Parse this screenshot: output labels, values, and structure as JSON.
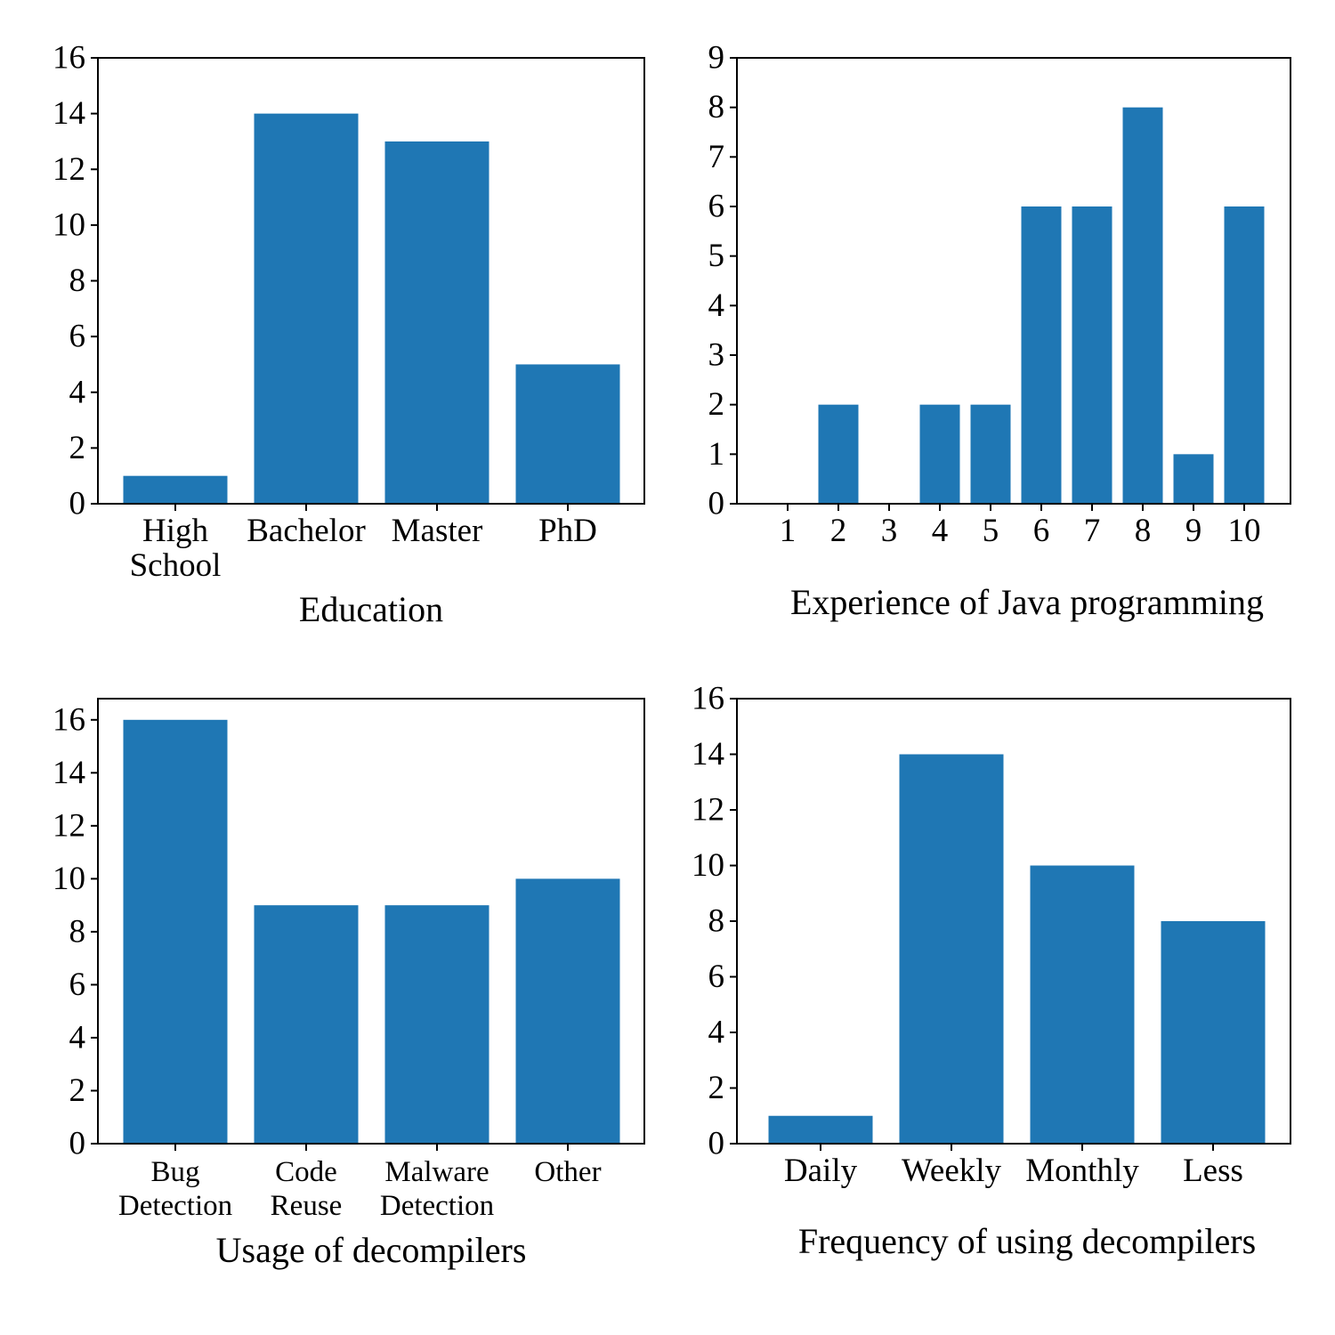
{
  "figure": {
    "bar_color": "#1f77b4",
    "axes_color": "#000000",
    "background": "#ffffff"
  },
  "chart_data": [
    {
      "type": "bar",
      "title": "",
      "xlabel": "Education",
      "ylabel": "",
      "categories": [
        [
          "High",
          "School"
        ],
        [
          "Bachelor"
        ],
        [
          "Master"
        ],
        [
          "PhD"
        ]
      ],
      "values": [
        1,
        14,
        13,
        5
      ],
      "ylim": [
        0,
        16
      ],
      "yticks": [
        0,
        2,
        4,
        6,
        8,
        10,
        12,
        14,
        16
      ],
      "grid": false,
      "legend": "none"
    },
    {
      "type": "bar",
      "title": "",
      "xlabel": "Experience of Java programming",
      "ylabel": "",
      "categories": [
        [
          "1"
        ],
        [
          "2"
        ],
        [
          "3"
        ],
        [
          "4"
        ],
        [
          "5"
        ],
        [
          "6"
        ],
        [
          "7"
        ],
        [
          "8"
        ],
        [
          "9"
        ],
        [
          "10"
        ]
      ],
      "values": [
        0,
        2,
        0,
        2,
        2,
        6,
        6,
        8,
        1,
        6
      ],
      "ylim": [
        0,
        9
      ],
      "yticks": [
        0,
        1,
        2,
        3,
        4,
        5,
        6,
        7,
        8,
        9
      ],
      "grid": false,
      "legend": "none"
    },
    {
      "type": "bar",
      "title": "",
      "xlabel": "Usage of decompilers",
      "ylabel": "",
      "categories": [
        [
          "Bug",
          "Detection"
        ],
        [
          "Code",
          "Reuse"
        ],
        [
          "Malware",
          "Detection"
        ],
        [
          "Other"
        ]
      ],
      "values": [
        16,
        9,
        9,
        10
      ],
      "ylim": [
        0,
        16.8
      ],
      "yticks": [
        0,
        2,
        4,
        6,
        8,
        10,
        12,
        14,
        16
      ],
      "grid": false,
      "legend": "none"
    },
    {
      "type": "bar",
      "title": "",
      "xlabel": "Frequency of using decompilers",
      "ylabel": "",
      "categories": [
        [
          "Daily"
        ],
        [
          "Weekly"
        ],
        [
          "Monthly"
        ],
        [
          "Less"
        ]
      ],
      "values": [
        1,
        14,
        10,
        8
      ],
      "ylim": [
        0,
        16
      ],
      "yticks": [
        0,
        2,
        4,
        6,
        8,
        10,
        12,
        14,
        16
      ],
      "grid": false,
      "legend": "none"
    }
  ]
}
